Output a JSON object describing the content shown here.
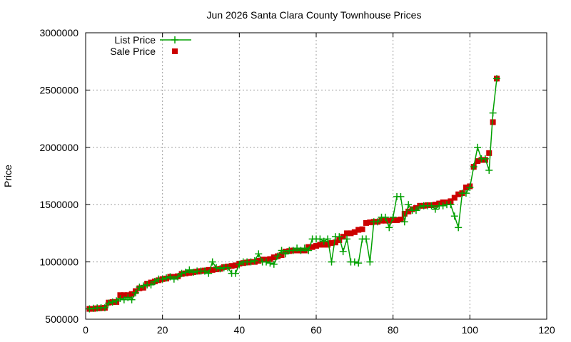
{
  "chart_data": {
    "type": "line",
    "title": "Jun 2026 Santa Clara County Townhouse Prices",
    "xlabel": "",
    "ylabel": "Price",
    "xlim": [
      0,
      120
    ],
    "ylim": [
      500000,
      3000000
    ],
    "xticks": [
      "0",
      "20",
      "40",
      "60",
      "80",
      "100",
      "120"
    ],
    "yticks": [
      "500000",
      "1000000",
      "1500000",
      "2000000",
      "2500000",
      "3000000"
    ],
    "grid": true,
    "legend_position": "top-left",
    "series": [
      {
        "name": "List Price",
        "style": "line-with-plus-markers",
        "color": "#00a000",
        "x": [
          1,
          2,
          3,
          4,
          5,
          6,
          7,
          8,
          9,
          10,
          11,
          12,
          13,
          14,
          15,
          16,
          17,
          18,
          19,
          20,
          21,
          22,
          23,
          24,
          25,
          26,
          27,
          28,
          29,
          30,
          31,
          32,
          33,
          34,
          35,
          36,
          37,
          38,
          39,
          40,
          41,
          42,
          43,
          44,
          45,
          46,
          47,
          48,
          49,
          50,
          51,
          52,
          53,
          54,
          55,
          56,
          57,
          58,
          59,
          60,
          61,
          62,
          63,
          64,
          65,
          66,
          67,
          68,
          69,
          70,
          71,
          72,
          73,
          74,
          75,
          76,
          77,
          78,
          79,
          80,
          81,
          82,
          83,
          84,
          85,
          86,
          87,
          88,
          89,
          90,
          91,
          92,
          93,
          94,
          95,
          96,
          97,
          98,
          99,
          100,
          101,
          102,
          103,
          104,
          105,
          106,
          107
        ],
        "y": [
          590000,
          595000,
          598000,
          600000,
          600000,
          640000,
          650000,
          660000,
          680000,
          670000,
          690000,
          670000,
          730000,
          780000,
          790000,
          800000,
          800000,
          830000,
          850000,
          850000,
          860000,
          870000,
          850000,
          870000,
          900000,
          910000,
          930000,
          910000,
          920000,
          920000,
          920000,
          900000,
          1000000,
          950000,
          940000,
          950000,
          950000,
          900000,
          900000,
          980000,
          1000000,
          1000000,
          1000000,
          1010000,
          1070000,
          1000000,
          1000000,
          990000,
          980000,
          1050000,
          1100000,
          1070000,
          1100000,
          1100000,
          1120000,
          1100000,
          1120000,
          1100000,
          1200000,
          1200000,
          1200000,
          1180000,
          1200000,
          1000000,
          1220000,
          1220000,
          1090000,
          1200000,
          1000000,
          1000000,
          990000,
          1200000,
          1200000,
          1000000,
          1350000,
          1350000,
          1390000,
          1390000,
          1300000,
          1390000,
          1570000,
          1570000,
          1350000,
          1500000,
          1450000,
          1450000,
          1480000,
          1490000,
          1490000,
          1490000,
          1460000,
          1490000,
          1490000,
          1500000,
          1500000,
          1400000,
          1300000,
          1600000,
          1600000,
          1650000,
          1830000,
          2000000,
          1900000,
          1900000,
          1800000,
          2300000,
          2600000
        ]
      },
      {
        "name": "Sale Price",
        "style": "square-markers",
        "color": "#cc0000",
        "x": [
          1,
          2,
          3,
          4,
          5,
          6,
          7,
          8,
          9,
          10,
          11,
          12,
          13,
          14,
          15,
          16,
          17,
          18,
          19,
          20,
          21,
          22,
          23,
          24,
          25,
          26,
          27,
          28,
          29,
          30,
          31,
          32,
          33,
          34,
          35,
          36,
          37,
          38,
          39,
          40,
          41,
          42,
          43,
          44,
          45,
          46,
          47,
          48,
          49,
          50,
          51,
          52,
          53,
          54,
          55,
          56,
          57,
          58,
          59,
          60,
          61,
          62,
          63,
          64,
          65,
          66,
          67,
          68,
          69,
          70,
          71,
          72,
          73,
          74,
          75,
          76,
          77,
          78,
          79,
          80,
          81,
          82,
          83,
          84,
          85,
          86,
          87,
          88,
          89,
          90,
          91,
          92,
          93,
          94,
          95,
          96,
          97,
          98,
          99,
          100,
          101,
          102,
          103,
          104,
          105,
          106,
          107
        ],
        "y": [
          590000,
          590000,
          595000,
          597000,
          600000,
          645000,
          650000,
          650000,
          710000,
          710000,
          710000,
          720000,
          745000,
          770000,
          775000,
          810000,
          820000,
          830000,
          840000,
          850000,
          855000,
          870000,
          870000,
          875000,
          895000,
          900000,
          905000,
          910000,
          915000,
          920000,
          925000,
          930000,
          930000,
          935000,
          940000,
          955000,
          960000,
          965000,
          970000,
          985000,
          990000,
          995000,
          1000000,
          1000000,
          1010000,
          1020000,
          1020000,
          1025000,
          1040000,
          1050000,
          1060000,
          1090000,
          1095000,
          1100000,
          1100000,
          1100000,
          1100000,
          1130000,
          1130000,
          1140000,
          1150000,
          1150000,
          1150000,
          1165000,
          1170000,
          1190000,
          1220000,
          1250000,
          1250000,
          1260000,
          1280000,
          1285000,
          1340000,
          1345000,
          1350000,
          1350000,
          1360000,
          1360000,
          1360000,
          1365000,
          1365000,
          1370000,
          1420000,
          1440000,
          1460000,
          1470000,
          1490000,
          1490000,
          1495000,
          1495000,
          1500000,
          1510000,
          1520000,
          1520000,
          1530000,
          1560000,
          1590000,
          1600000,
          1650000,
          1660000,
          1830000,
          1880000,
          1890000,
          1890000,
          1950000,
          2220000,
          2600000
        ]
      }
    ]
  }
}
